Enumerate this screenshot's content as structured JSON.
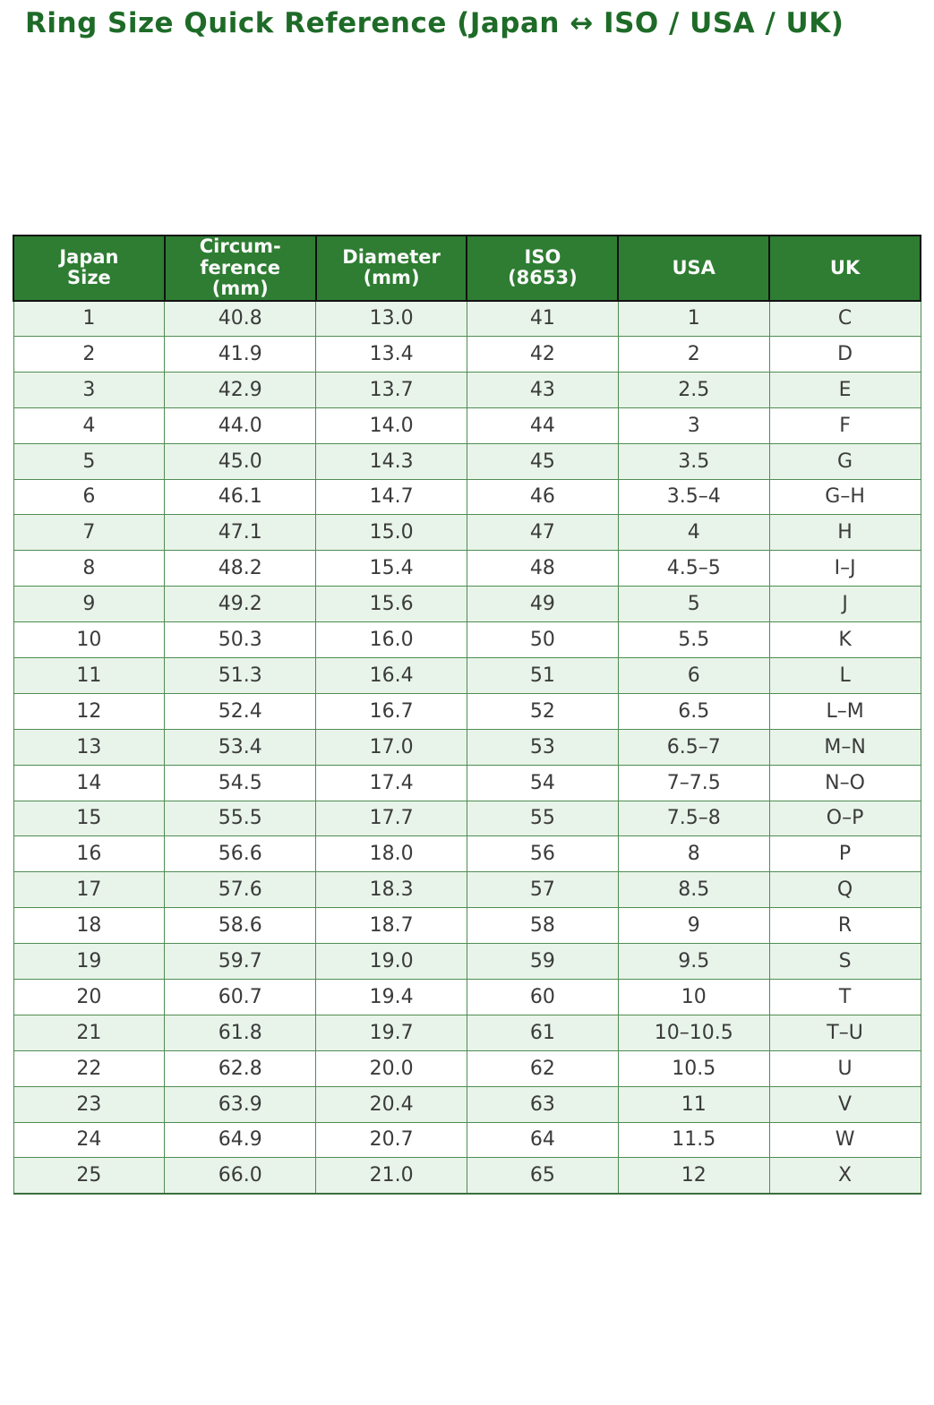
{
  "colors": {
    "title_color": "#1e6b28",
    "header_bg": "#2e7d32",
    "header_text": "#fafafa",
    "header_border": "#111111",
    "cell_border": "#4f8d53",
    "cell_text": "#3b3b3b",
    "stripe_color": "#e8f4e9",
    "row_white": "#ffffff",
    "page_bg": "#ffffff"
  },
  "chart_data": {
    "type": "table",
    "title": "Ring Size Quick Reference (Japan ↔ ISO / USA / UK)",
    "columns": [
      "Japan\nSize",
      "Circum-\nference\n(mm)",
      "Diameter\n(mm)",
      "ISO\n(8653)",
      "USA",
      "UK"
    ],
    "rows": [
      [
        "1",
        "40.8",
        "13.0",
        "41",
        "1",
        "C"
      ],
      [
        "2",
        "41.9",
        "13.4",
        "42",
        "2",
        "D"
      ],
      [
        "3",
        "42.9",
        "13.7",
        "43",
        "2.5",
        "E"
      ],
      [
        "4",
        "44.0",
        "14.0",
        "44",
        "3",
        "F"
      ],
      [
        "5",
        "45.0",
        "14.3",
        "45",
        "3.5",
        "G"
      ],
      [
        "6",
        "46.1",
        "14.7",
        "46",
        "3.5–4",
        "G–H"
      ],
      [
        "7",
        "47.1",
        "15.0",
        "47",
        "4",
        "H"
      ],
      [
        "8",
        "48.2",
        "15.4",
        "48",
        "4.5–5",
        "I–J"
      ],
      [
        "9",
        "49.2",
        "15.6",
        "49",
        "5",
        "J"
      ],
      [
        "10",
        "50.3",
        "16.0",
        "50",
        "5.5",
        "K"
      ],
      [
        "11",
        "51.3",
        "16.4",
        "51",
        "6",
        "L"
      ],
      [
        "12",
        "52.4",
        "16.7",
        "52",
        "6.5",
        "L–M"
      ],
      [
        "13",
        "53.4",
        "17.0",
        "53",
        "6.5–7",
        "M–N"
      ],
      [
        "14",
        "54.5",
        "17.4",
        "54",
        "7–7.5",
        "N–O"
      ],
      [
        "15",
        "55.5",
        "17.7",
        "55",
        "7.5–8",
        "O–P"
      ],
      [
        "16",
        "56.6",
        "18.0",
        "56",
        "8",
        "P"
      ],
      [
        "17",
        "57.6",
        "18.3",
        "57",
        "8.5",
        "Q"
      ],
      [
        "18",
        "58.6",
        "18.7",
        "58",
        "9",
        "R"
      ],
      [
        "19",
        "59.7",
        "19.0",
        "59",
        "9.5",
        "S"
      ],
      [
        "20",
        "60.7",
        "19.4",
        "60",
        "10",
        "T"
      ],
      [
        "21",
        "61.8",
        "19.7",
        "61",
        "10–10.5",
        "T–U"
      ],
      [
        "22",
        "62.8",
        "20.0",
        "62",
        "10.5",
        "U"
      ],
      [
        "23",
        "63.9",
        "20.4",
        "63",
        "11",
        "V"
      ],
      [
        "24",
        "64.9",
        "20.7",
        "64",
        "11.5",
        "W"
      ],
      [
        "25",
        "66.0",
        "21.0",
        "65",
        "12",
        "X"
      ]
    ],
    "layout": {
      "striped": true,
      "stripe_start": "first-data-row",
      "legend": "none",
      "grid": "full-cell-borders"
    }
  }
}
